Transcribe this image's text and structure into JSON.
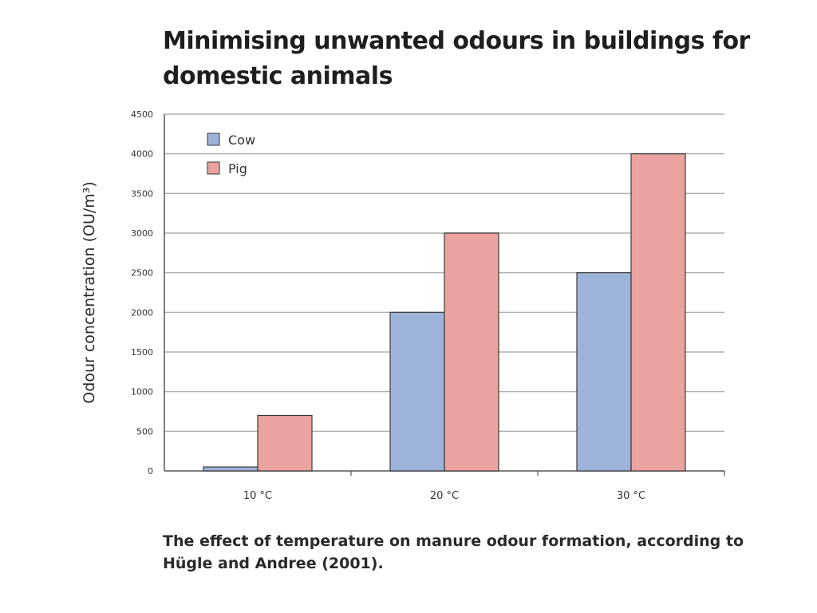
{
  "title": "Minimising unwanted odours in buildings for domestic animals",
  "caption": "The effect of temperature on manure odour formation, according to Hügle and Andree  (2001).",
  "colors": {
    "cow": "#9db3d9",
    "pig": "#eaa3a1",
    "grid": "#b0b0b0",
    "axis": "#555555"
  },
  "chart_data": {
    "type": "bar",
    "categories": [
      "10 °C",
      "20 °C",
      "30 °C"
    ],
    "series": [
      {
        "name": "Cow",
        "values": [
          50,
          2000,
          2500
        ]
      },
      {
        "name": "Pig",
        "values": [
          700,
          3000,
          4000
        ]
      }
    ],
    "ylabel": "Odour concentration (OU/m³)",
    "xlabel": "",
    "ylim": [
      0,
      4500
    ],
    "yticks": [
      0,
      500,
      1000,
      1500,
      2000,
      2500,
      3000,
      3500,
      4000,
      4500
    ],
    "grid": true,
    "legend": "top-left"
  }
}
